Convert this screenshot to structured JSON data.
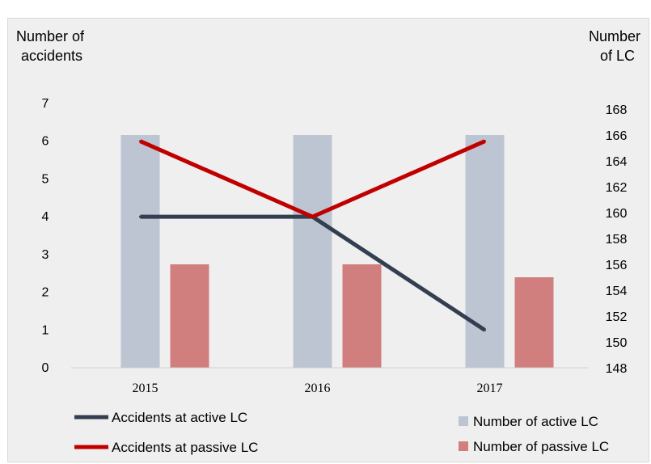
{
  "chart_data": {
    "type": "bar+line",
    "categories": [
      "2015",
      "2016",
      "2017"
    ],
    "ylabel_left": "Number of accidents",
    "ylabel_left_lines": [
      "Number of",
      "accidents"
    ],
    "ylabel_right": "Number of LC",
    "ylabel_right_lines": [
      "Number",
      "of LC"
    ],
    "ylim_left": [
      0,
      7
    ],
    "yticks_left": [
      0,
      1,
      2,
      3,
      4,
      5,
      6,
      7
    ],
    "ylim_right": [
      148,
      168
    ],
    "yticks_right": [
      148,
      150,
      152,
      154,
      156,
      158,
      160,
      162,
      164,
      166,
      168
    ],
    "bars": [
      {
        "name": "Number of active LC",
        "axis": "right",
        "values": [
          166,
          166,
          166
        ],
        "color": "#bcc5d1"
      },
      {
        "name": "Number of passive LC",
        "axis": "right",
        "values": [
          156,
          156,
          155
        ],
        "color": "#d17f7e"
      }
    ],
    "lines": [
      {
        "name": "Accidents at active LC",
        "axis": "left",
        "values": [
          4,
          4,
          1
        ],
        "color": "#333f50"
      },
      {
        "name": "Accidents at passive LC",
        "axis": "left",
        "values": [
          6,
          4,
          6
        ],
        "color": "#c00000"
      }
    ],
    "grid": false,
    "legend_position": "bottom"
  }
}
